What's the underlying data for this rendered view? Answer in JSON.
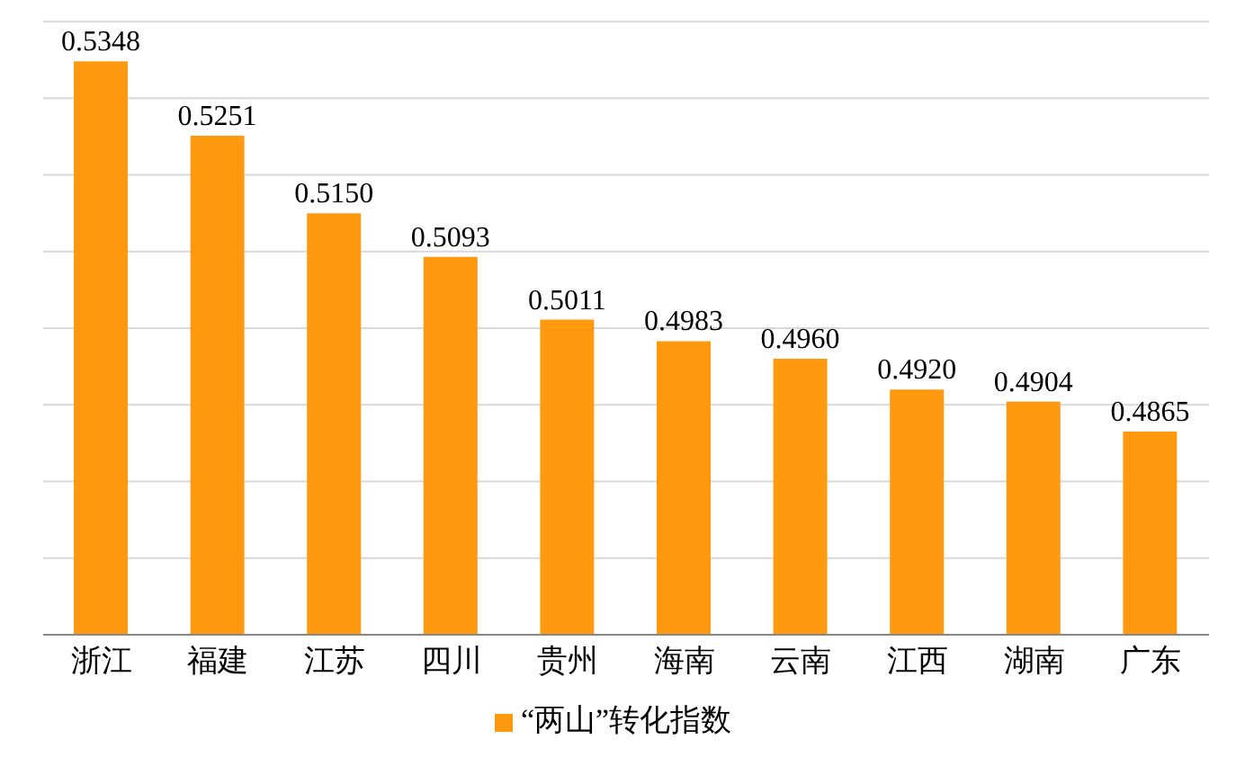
{
  "chart_data": {
    "type": "bar",
    "categories": [
      "浙江",
      "福建",
      "江苏",
      "四川",
      "贵州",
      "海南",
      "云南",
      "江西",
      "湖南",
      "广东"
    ],
    "series": [
      {
        "name": "“两山”转化指数",
        "color": "#ff9a10",
        "values": [
          0.5348,
          0.5251,
          0.515,
          0.5093,
          0.5011,
          0.4983,
          0.496,
          0.492,
          0.4904,
          0.4865
        ],
        "value_labels": [
          "0.5348",
          "0.5251",
          "0.5150",
          "0.5093",
          "0.5011",
          "0.4983",
          "0.4960",
          "0.4920",
          "0.4904",
          "0.4865"
        ]
      }
    ],
    "ylim": [
      0.46,
      0.54
    ],
    "tick_labels": "x",
    "grid": "y",
    "legend": "bottom"
  }
}
